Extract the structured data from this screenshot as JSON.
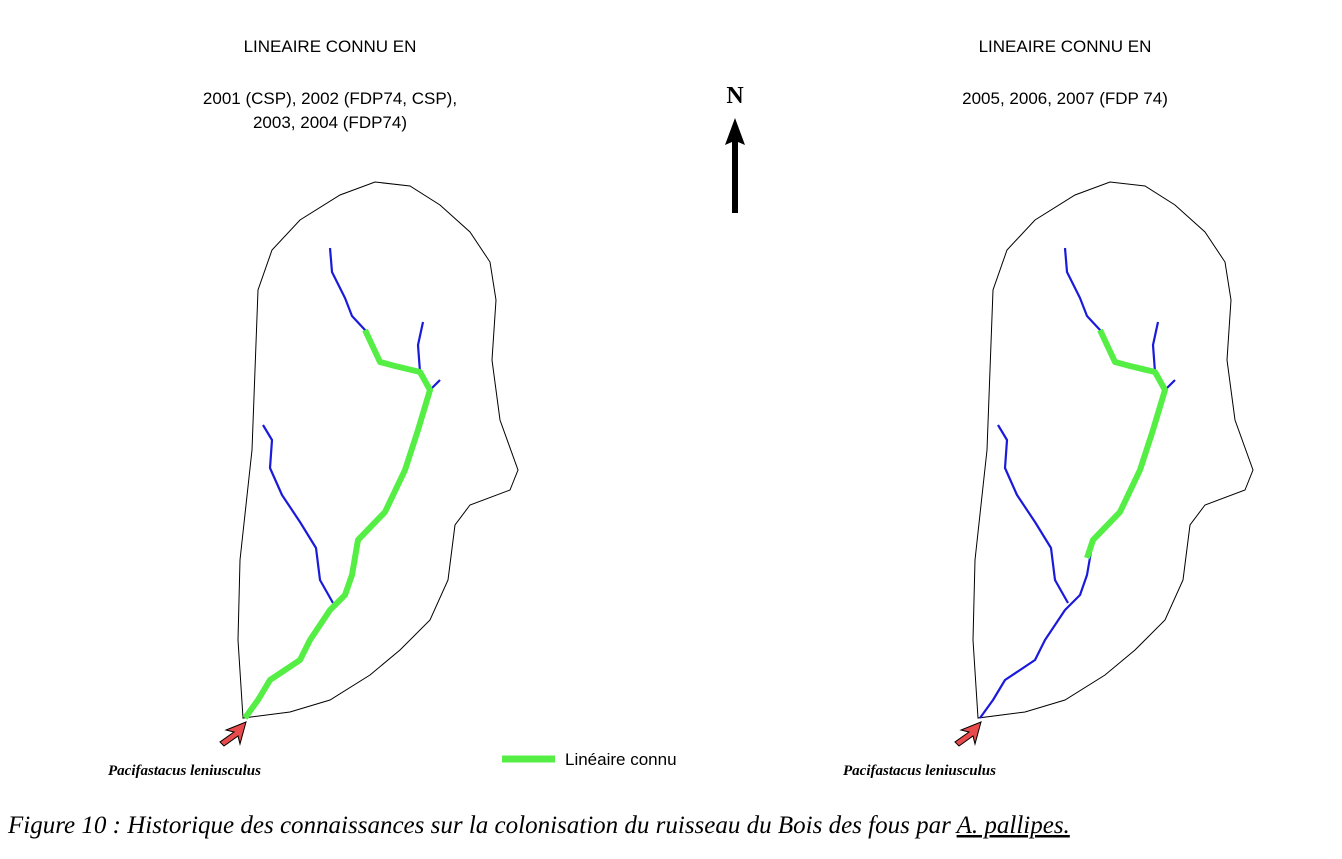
{
  "panels": [
    {
      "heading": "LINEAIRE CONNU EN",
      "years": [
        "2001 (CSP), 2002 (FDP74, CSP),",
        "2003, 2004 (FDP74)"
      ],
      "species": "Pacifastacus leniusculus"
    },
    {
      "heading": "LINEAIRE CONNU EN",
      "years": [
        "2005, 2006, 2007 (FDP 74)"
      ],
      "species": "Pacifastacus leniusculus"
    }
  ],
  "north": "N",
  "legend": {
    "label": "Linéaire connu"
  },
  "caption": {
    "text": "Figure 10 : Historique des connaissances sur la colonisation du ruisseau du Bois des fous par ",
    "underlined": "A. pallipes."
  }
}
